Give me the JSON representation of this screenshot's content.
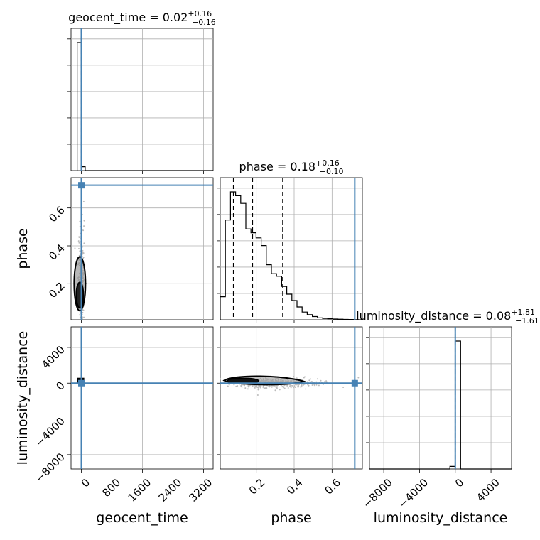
{
  "chart_data": {
    "type": "corner",
    "parameters": [
      "geocent_time",
      "phase",
      "luminosity_distance"
    ],
    "truths": {
      "geocent_time": 0,
      "phase": 0.72,
      "luminosity_distance": 0
    },
    "titles": [
      {
        "param": "geocent_time",
        "main": "geocent_time = 0.02",
        "sup": "+0.16",
        "sub": "−0.16"
      },
      {
        "param": "phase",
        "main": "phase = 0.18",
        "sup": "+0.16",
        "sub": "−0.10"
      },
      {
        "param": "luminosity_distance",
        "main": "luminosity_distance = 0.08",
        "sup": "+1.81",
        "sub": "−1.61"
      }
    ],
    "axis_labels": {
      "x": [
        "geocent_time",
        "phase",
        "luminosity_distance"
      ],
      "y": [
        "",
        "phase",
        "luminosity_distance"
      ]
    },
    "ranges": {
      "geocent_time": [
        -270,
        3450
      ],
      "phase": [
        0.01,
        0.76
      ],
      "luminosity_distance": [
        -9600,
        6300
      ]
    },
    "ticks": {
      "geocent_time": [
        {
          "v": 0,
          "label": "0"
        },
        {
          "v": 800,
          "label": "800"
        },
        {
          "v": 1600,
          "label": "1600"
        },
        {
          "v": 2400,
          "label": "2400"
        },
        {
          "v": 3200,
          "label": "3200"
        }
      ],
      "phase": [
        {
          "v": 0.2,
          "label": "0.2"
        },
        {
          "v": 0.4,
          "label": "0.4"
        },
        {
          "v": 0.6,
          "label": "0.6"
        }
      ],
      "luminosity_distance": [
        {
          "v": -8000,
          "label": "−8000"
        },
        {
          "v": -4000,
          "label": "−4000"
        },
        {
          "v": 0,
          "label": "0"
        },
        {
          "v": 4000,
          "label": "4000"
        }
      ]
    },
    "histograms": {
      "geocent_time": {
        "bin_edges": [
          -110,
          0,
          100,
          200,
          3450
        ],
        "counts": [
          1.0,
          0.03,
          0.0,
          0.0
        ],
        "quantiles": [
          -0.14,
          0.02,
          0.18
        ]
      },
      "phase": {
        "bin_edges": [
          0.01,
          0.037,
          0.064,
          0.091,
          0.118,
          0.145,
          0.172,
          0.199,
          0.226,
          0.253,
          0.28,
          0.307,
          0.334,
          0.361,
          0.388,
          0.415,
          0.442,
          0.469,
          0.496,
          0.523,
          0.55,
          0.577,
          0.604,
          0.631,
          0.658,
          0.685,
          0.712,
          0.739,
          0.76
        ],
        "counts": [
          0.18,
          0.78,
          1.0,
          0.97,
          0.91,
          0.71,
          0.68,
          0.64,
          0.58,
          0.43,
          0.36,
          0.34,
          0.26,
          0.2,
          0.15,
          0.1,
          0.06,
          0.04,
          0.025,
          0.015,
          0.01,
          0.008,
          0.006,
          0.004,
          0.003,
          0.002,
          0.001,
          0.0
        ],
        "quantiles": [
          0.08,
          0.18,
          0.34
        ]
      },
      "luminosity_distance": {
        "bin_edges": [
          -9600,
          -600,
          0,
          600,
          6300
        ],
        "counts": [
          0.0,
          0.02,
          1.0,
          0.0
        ],
        "quantiles": [
          -1.53,
          0.08,
          1.89
        ]
      }
    },
    "panels_2d": [
      {
        "x": "geocent_time",
        "y": "phase",
        "description": "narrow contour near geocent_time 0, phase 0.05–0.36"
      },
      {
        "x": "geocent_time",
        "y": "luminosity_distance",
        "description": "compact block near origin"
      },
      {
        "x": "phase",
        "y": "luminosity_distance",
        "description": "elongated contour along luminosity_distance ≈ 0"
      }
    ],
    "colors": {
      "truth": "#4682b4",
      "hist": "#000000",
      "scatter": "#bbbbbb",
      "grid": "#b0b0b0"
    }
  }
}
